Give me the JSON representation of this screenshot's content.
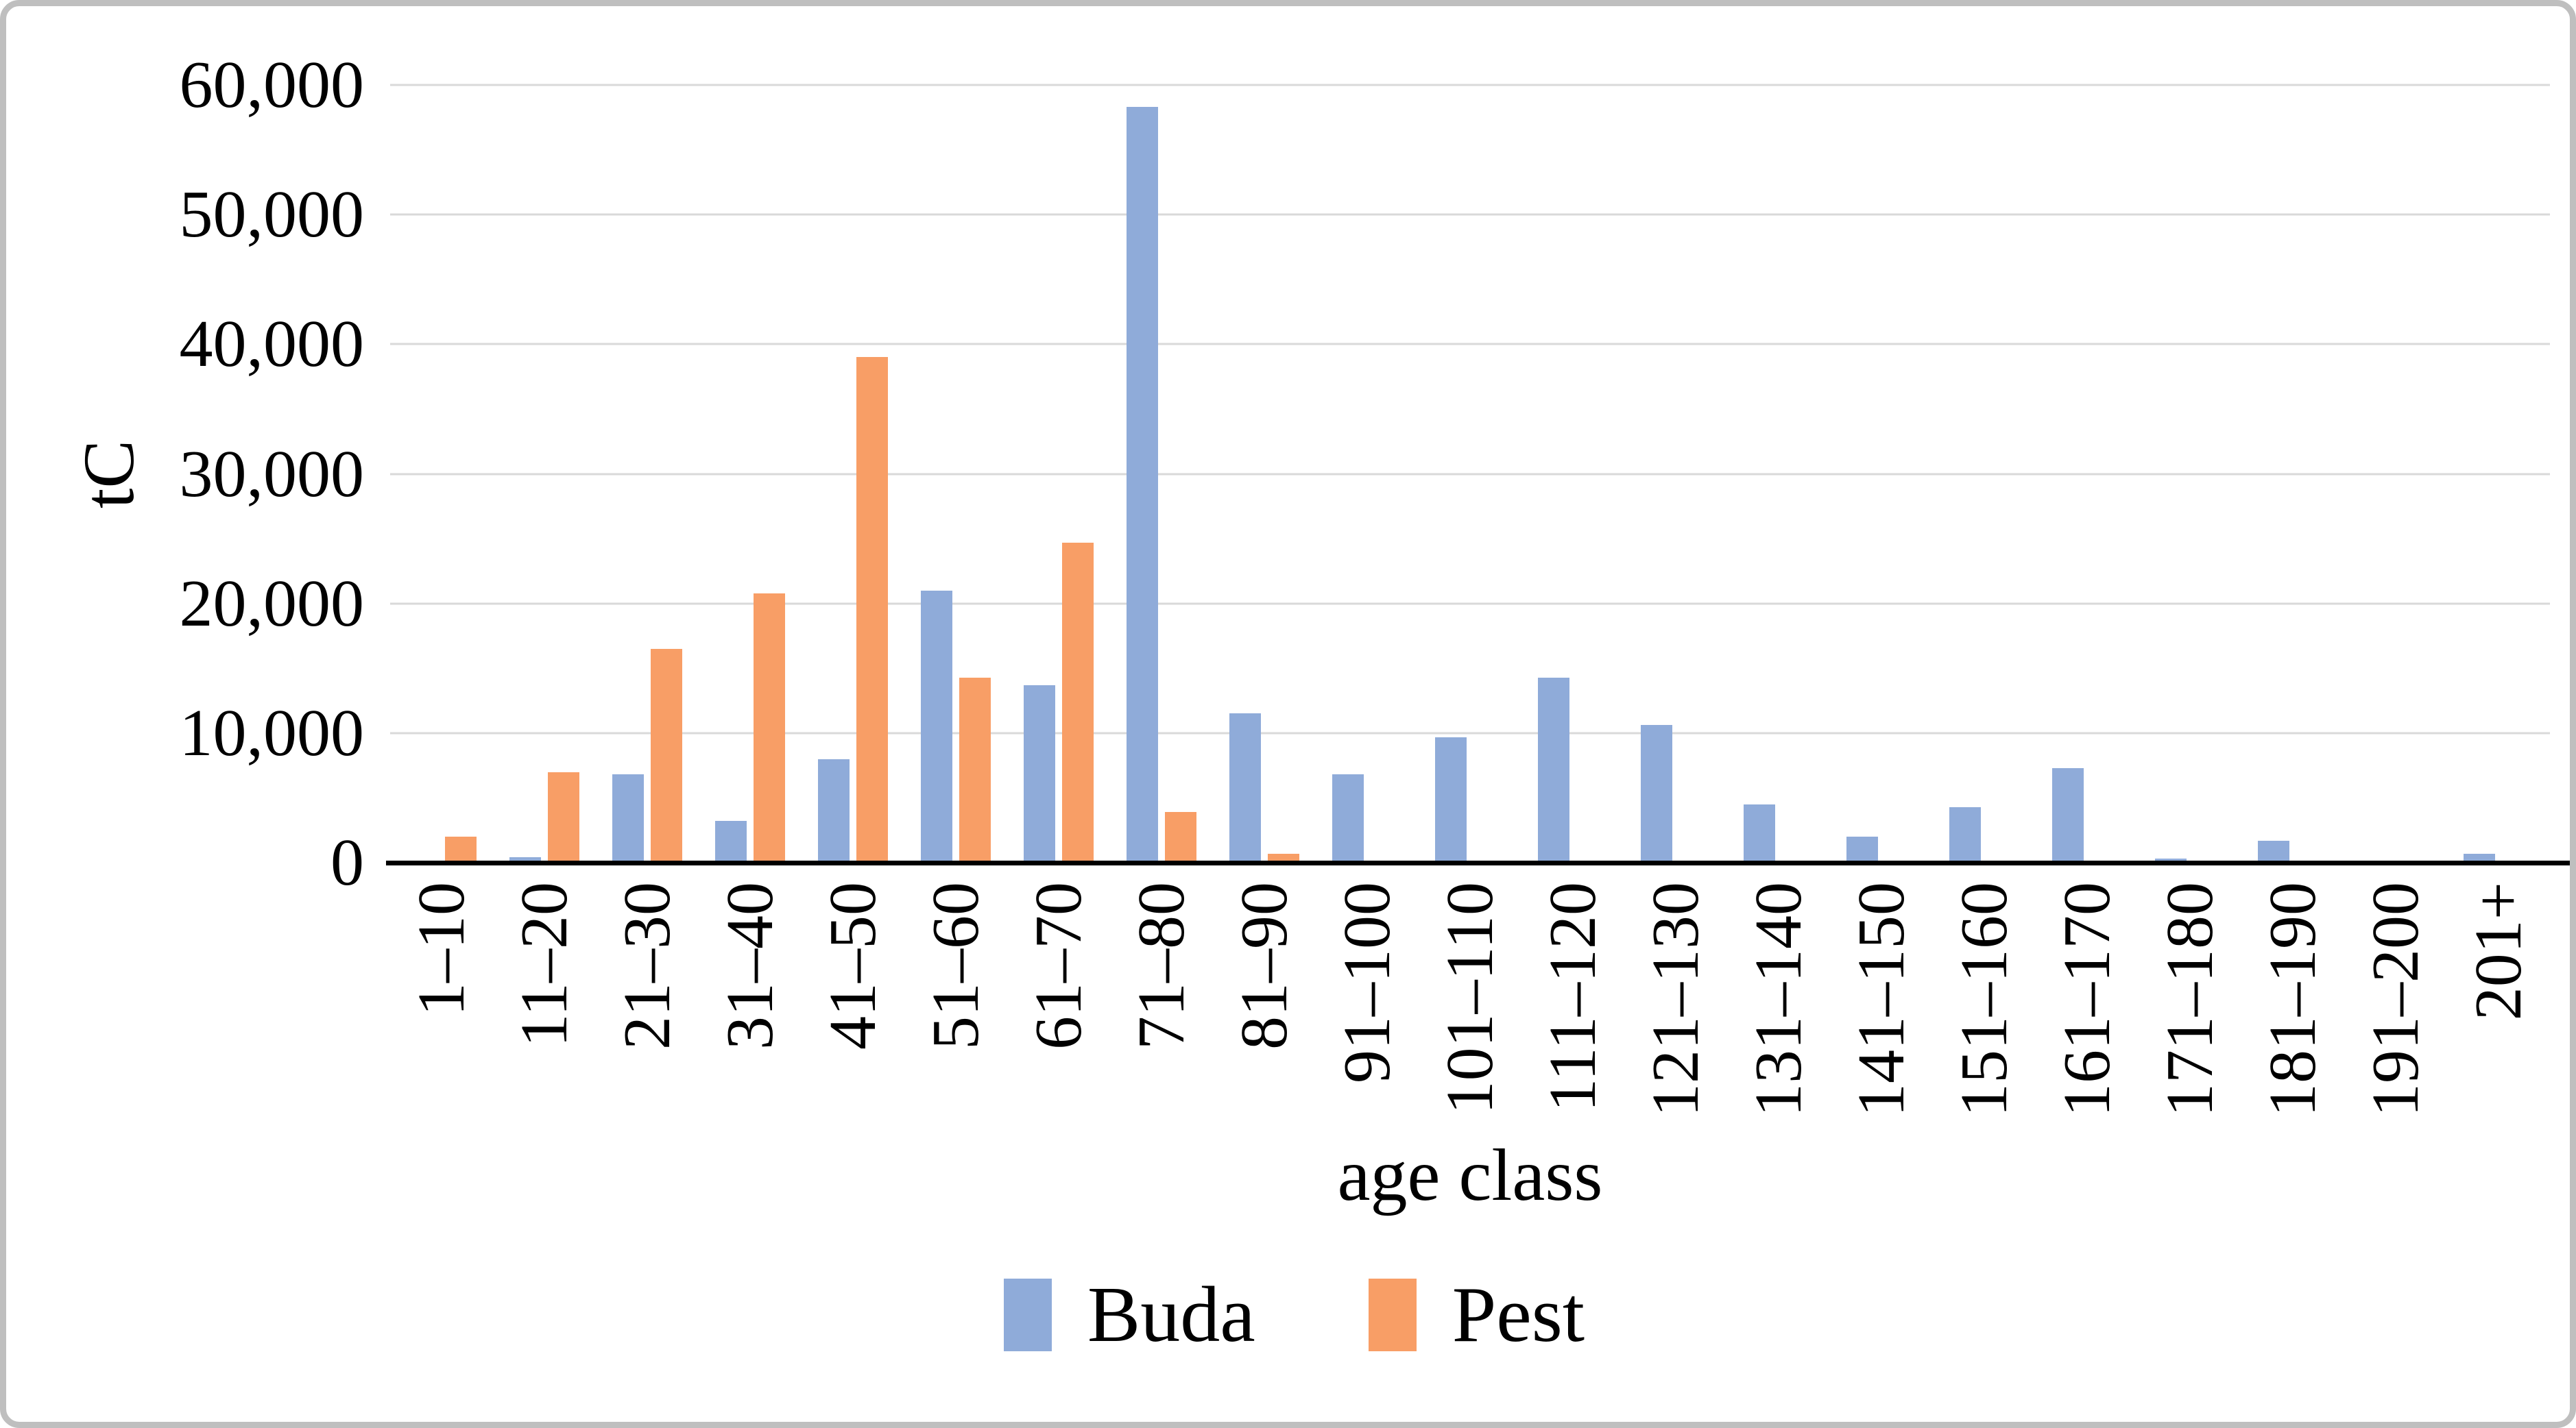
{
  "chart_data": {
    "type": "bar",
    "title": "",
    "xlabel": "age class",
    "ylabel": "tC",
    "ylim": [
      0,
      60000
    ],
    "grid": true,
    "legend_position": "bottom",
    "yticks": [
      {
        "value": 0,
        "label": "0"
      },
      {
        "value": 10000,
        "label": "10,000"
      },
      {
        "value": 20000,
        "label": "20,000"
      },
      {
        "value": 30000,
        "label": "30,000"
      },
      {
        "value": 40000,
        "label": "40,000"
      },
      {
        "value": 50000,
        "label": "50,000"
      },
      {
        "value": 60000,
        "label": "60,000"
      }
    ],
    "categories": [
      "1–10",
      "11–20",
      "21–30",
      "31–40",
      "41–50",
      "51–60",
      "61–70",
      "71–80",
      "81–90",
      "91–100",
      "101–110",
      "111–120",
      "121–130",
      "131–140",
      "141–150",
      "151–160",
      "161–170",
      "171–180",
      "181–190",
      "191–200",
      "201+"
    ],
    "series": [
      {
        "name": "Buda",
        "color": "#8FABD9",
        "values": [
          0,
          400,
          6800,
          3200,
          8000,
          21000,
          13700,
          58300,
          11500,
          6800,
          9700,
          14300,
          10600,
          4500,
          2000,
          4300,
          7300,
          300,
          1700,
          0,
          700
        ]
      },
      {
        "name": "Pest",
        "color": "#F89E66",
        "values": [
          2000,
          7000,
          16500,
          20800,
          39000,
          14300,
          24700,
          3900,
          700,
          0,
          0,
          0,
          0,
          0,
          0,
          0,
          0,
          0,
          0,
          0,
          0
        ]
      }
    ]
  },
  "style": {
    "grid_color": "#D9D9D9",
    "axis_line_color": "#000000",
    "frame_border_color": "#BFBFBF",
    "background_color": "#FFFFFF",
    "text_color": "#000000"
  }
}
